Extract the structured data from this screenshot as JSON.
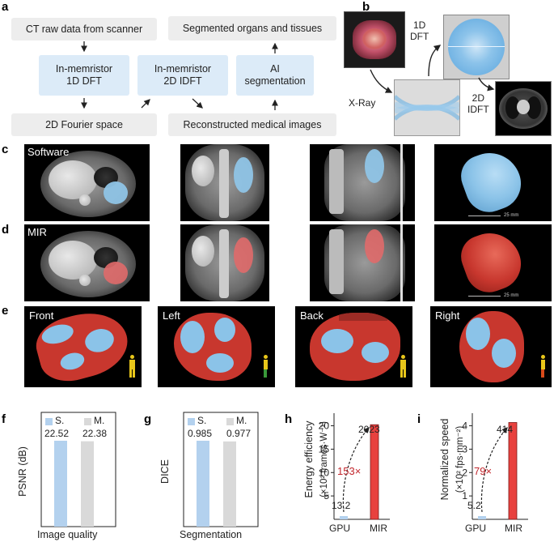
{
  "panel_labels": {
    "a": "a",
    "b": "b",
    "c": "c",
    "d": "d",
    "e": "e",
    "f": "f",
    "g": "g",
    "h": "h",
    "i": "i"
  },
  "flow": {
    "ct_raw": "CT raw data from scanner",
    "segmented": "Segmented organs and tissues",
    "dft_1d": "In-memristor\n1D DFT",
    "idft_2d": "In-memristor\n2D IDFT",
    "ai_seg": "AI\nsegmentation",
    "fourier": "2D Fourier space",
    "reconstructed": "Reconstructed medical images"
  },
  "schematic": {
    "dft_label": "1D\nDFT",
    "xray_label": "X-Ray",
    "idft_label": "2D\nIDFT"
  },
  "row_c_label": "Software",
  "row_d_label": "MIR",
  "scale_label": "25 mm",
  "views": [
    "Front",
    "Left",
    "Back",
    "Right"
  ],
  "colors": {
    "software": "#b3d1ee",
    "mir": "#d9d9d9",
    "gpu": "#b3d1ee",
    "mir_bar": "#e8413e",
    "highlight": "#c2272d"
  },
  "chart_data": [
    {
      "type": "bar",
      "panel": "f",
      "categories": [
        "S.",
        "M."
      ],
      "values": [
        22.52,
        22.38
      ],
      "legend": [
        "S.",
        "M."
      ],
      "ylabel": "PSNR (dB)",
      "xlabel": "Image quality",
      "data_labels": [
        "22.52",
        "22.38"
      ]
    },
    {
      "type": "bar",
      "panel": "g",
      "categories": [
        "S.",
        "M."
      ],
      "values": [
        0.985,
        0.977
      ],
      "legend": [
        "S.",
        "M."
      ],
      "ylabel": "DICE",
      "xlabel": "Segmentation",
      "data_labels": [
        "0.985",
        "0.977"
      ]
    },
    {
      "type": "bar",
      "panel": "h",
      "categories": [
        "GPU",
        "MIR"
      ],
      "values": [
        0.132,
        20.23
      ],
      "ylabel": "Energy efficiency",
      "yunit": "(×10² frames·W⁻¹)",
      "ylim": [
        0,
        22
      ],
      "yticks": [
        5,
        10,
        15,
        20
      ],
      "data_labels": [
        "13.2",
        "2023"
      ],
      "annotation": "153×"
    },
    {
      "type": "bar",
      "panel": "i",
      "categories": [
        "GPU",
        "MIR"
      ],
      "values": [
        0.052,
        4.14
      ],
      "ylabel": "Normalized speed",
      "yunit": "(×10² fps·mm⁻²)",
      "ylim": [
        0,
        4.4
      ],
      "yticks": [
        1,
        2,
        3,
        4
      ],
      "data_labels": [
        "5.2",
        "414"
      ],
      "annotation": "79×"
    }
  ]
}
